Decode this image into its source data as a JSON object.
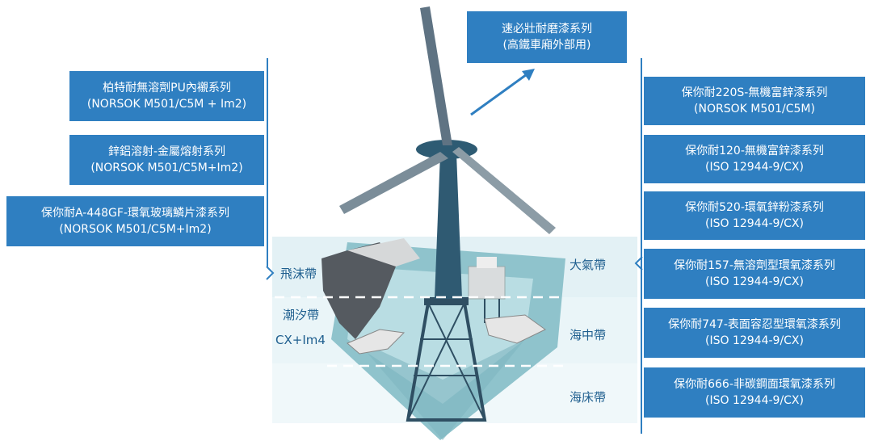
{
  "top_box": {
    "line1": "速必壯耐磨漆系列",
    "line2": "(高鐵車廂外部用)"
  },
  "left_boxes": [
    {
      "line1": "柏特耐無溶劑PU內襯系列",
      "line2": "(NORSOK M501/C5M + Im2)"
    },
    {
      "line1": "鋅鋁溶射-金屬熔射系列",
      "line2": "(NORSOK M501/C5M+Im2)"
    },
    {
      "line1": "保你耐A-448GF-環氧玻璃鱗片漆系列",
      "line2": "(NORSOK M501/C5M+Im2)"
    }
  ],
  "right_boxes": [
    {
      "line1": "保你耐220S-無機富鋅漆系列",
      "line2": "(NORSOK M501/C5M)"
    },
    {
      "line1": "保你耐120-無機富鋅漆系列",
      "line2": "(ISO 12944-9/CX)"
    },
    {
      "line1": "保你耐520-環氧鋅粉漆系列",
      "line2": "(ISO 12944-9/CX)"
    },
    {
      "line1": "保你耐157-無溶劑型環氧漆系列",
      "line2": "(ISO 12944-9/CX)"
    },
    {
      "line1": "保你耐747-表面容忍型環氧漆系列",
      "line2": "(ISO 12944-9/CX)"
    },
    {
      "line1": "保你耐666-非碳鋼面環氧漆系列",
      "line2": "(ISO 12944-9/CX)"
    }
  ],
  "zones": {
    "splash": "飛沫帶",
    "tidal": "潮汐帶",
    "tidal_grade": "CX+Im4",
    "atmosphere": "大氣帶",
    "subsea": "海中帶",
    "seabed": "海床帶"
  },
  "colors": {
    "box": "#2f7fc1",
    "zone_text": "#1f5f8f",
    "water": "#a9d3da",
    "tower": "#2f4f63"
  }
}
